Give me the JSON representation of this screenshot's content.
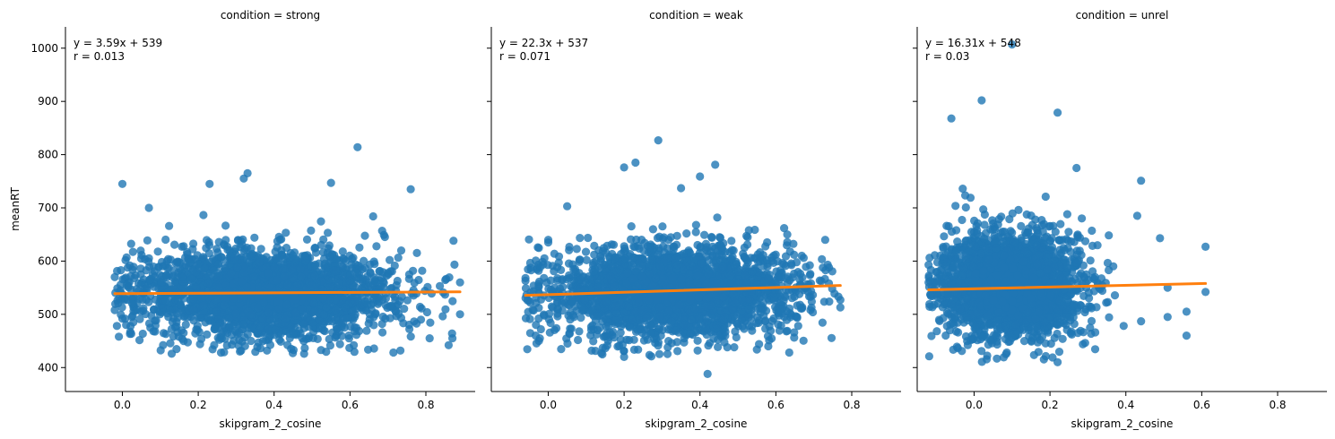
{
  "chart_data": {
    "type": "scatter",
    "ylabel": "meanRT",
    "xlabel": "skipgram_2_cosine",
    "xlim": [
      -0.15,
      0.93
    ],
    "ylim": [
      355,
      1040
    ],
    "xticks": [
      "0.0",
      "0.2",
      "0.4",
      "0.6",
      "0.8"
    ],
    "yticks": [
      "400",
      "500",
      "600",
      "700",
      "800",
      "900",
      "1000"
    ],
    "point_color": "#1f77b4",
    "fit_color": "#ff7f0e",
    "panels": [
      {
        "title": "condition = strong",
        "equation": "y = 3.59x + 539",
        "r": "r = 0.013",
        "slope": 3.59,
        "intercept": 539,
        "fit_x": [
          -0.02,
          0.89
        ],
        "cloud": {
          "x_range": [
            -0.02,
            0.89
          ],
          "x_mean": 0.38,
          "x_sd": 0.17,
          "y_mean": 540,
          "y_sd": 42,
          "n": 2600,
          "y_min": 425,
          "y_max": 760
        },
        "outliers": [
          [
            0.0,
            745
          ],
          [
            0.62,
            814
          ],
          [
            0.33,
            765
          ],
          [
            0.32,
            755
          ],
          [
            0.23,
            745
          ],
          [
            0.76,
            735
          ],
          [
            0.55,
            747
          ],
          [
            0.07,
            700
          ],
          [
            0.13,
            426
          ],
          [
            0.26,
            428
          ],
          [
            0.31,
            430
          ],
          [
            0.61,
            442
          ],
          [
            0.86,
            442
          ],
          [
            0.87,
            455
          ],
          [
            0.81,
            455
          ],
          [
            0.89,
            500
          ],
          [
            0.89,
            560
          ],
          [
            -0.02,
            570
          ],
          [
            -0.02,
            508
          ],
          [
            0.01,
            480
          ],
          [
            0.0,
            492
          ]
        ]
      },
      {
        "title": "condition = weak",
        "equation": "y = 22.3x + 537",
        "r": "r = 0.071",
        "slope": 22.3,
        "intercept": 537,
        "fit_x": [
          -0.06,
          0.77
        ],
        "cloud": {
          "x_range": [
            -0.06,
            0.77
          ],
          "x_mean": 0.33,
          "x_sd": 0.16,
          "y_mean": 543,
          "y_sd": 42,
          "n": 2600,
          "y_min": 420,
          "y_max": 760
        },
        "outliers": [
          [
            0.29,
            827
          ],
          [
            0.2,
            776
          ],
          [
            0.23,
            785
          ],
          [
            0.44,
            781
          ],
          [
            0.35,
            737
          ],
          [
            0.4,
            759
          ],
          [
            0.63,
            650
          ],
          [
            0.05,
            703
          ],
          [
            0.42,
            388
          ],
          [
            0.2,
            420
          ],
          [
            0.14,
            427
          ],
          [
            0.73,
            640
          ],
          [
            0.74,
            588
          ],
          [
            0.77,
            527
          ],
          [
            0.77,
            513
          ],
          [
            -0.06,
            568
          ],
          [
            -0.06,
            563
          ],
          [
            0.0,
            640
          ],
          [
            0.0,
            635
          ],
          [
            0.55,
            434
          ],
          [
            0.58,
            440
          ]
        ]
      },
      {
        "title": "condition = unrel",
        "equation": "y = 16.31x + 548",
        "r": "r = 0.03",
        "slope": 16.31,
        "intercept": 548,
        "fit_x": [
          -0.12,
          0.61
        ],
        "cloud": {
          "x_range": [
            -0.12,
            0.61
          ],
          "x_mean": 0.1,
          "x_sd": 0.09,
          "y_mean": 555,
          "y_sd": 48,
          "n": 2600,
          "y_min": 410,
          "y_max": 780
        },
        "outliers": [
          [
            0.1,
            1007
          ],
          [
            0.02,
            902
          ],
          [
            -0.06,
            868
          ],
          [
            0.22,
            879
          ],
          [
            0.44,
            751
          ],
          [
            0.61,
            627
          ],
          [
            0.61,
            542
          ],
          [
            0.56,
            505
          ],
          [
            0.56,
            460
          ],
          [
            0.27,
            775
          ],
          [
            0.22,
            410
          ],
          [
            0.44,
            487
          ],
          [
            0.49,
            643
          ],
          [
            0.43,
            685
          ],
          [
            -0.12,
            593
          ],
          [
            -0.12,
            560
          ],
          [
            -0.03,
            736
          ],
          [
            0.51,
            550
          ],
          [
            0.51,
            495
          ]
        ]
      }
    ]
  }
}
